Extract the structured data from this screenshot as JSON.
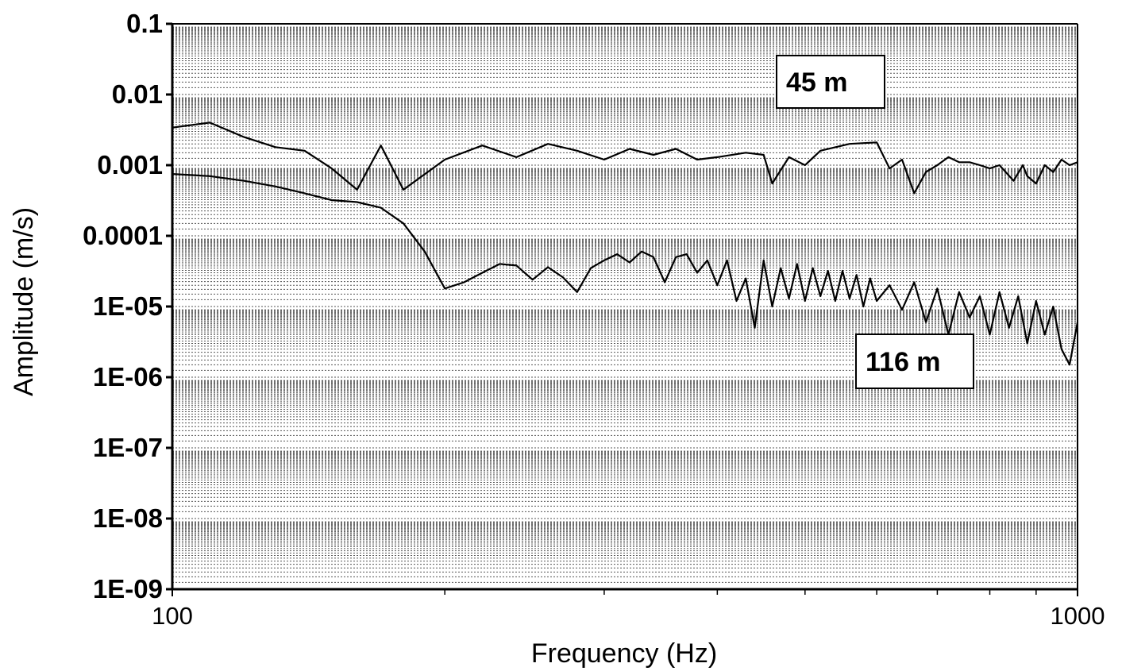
{
  "chart_data": {
    "type": "line",
    "xscale": "log",
    "yscale": "log",
    "xlabel": "Frequency (Hz)",
    "ylabel": "Amplitude (m/s)",
    "xlim": [
      100,
      1000
    ],
    "ylim": [
      1e-09,
      0.1
    ],
    "x_ticks": [
      {
        "value": 100,
        "label": "100"
      },
      {
        "value": 1000,
        "label": "1000"
      }
    ],
    "x_minor_ticks": [
      200,
      300,
      400,
      500,
      600,
      700,
      800,
      900
    ],
    "y_ticks": [
      {
        "value": 0.1,
        "label": "0.1"
      },
      {
        "value": 0.01,
        "label": "0.01"
      },
      {
        "value": 0.001,
        "label": "0.001"
      },
      {
        "value": 0.0001,
        "label": "0.0001"
      },
      {
        "value": 1e-05,
        "label": "1E-05"
      },
      {
        "value": 1e-06,
        "label": "1E-06"
      },
      {
        "value": 1e-07,
        "label": "1E-07"
      },
      {
        "value": 1e-08,
        "label": "1E-08"
      },
      {
        "value": 1e-09,
        "label": "1E-09"
      }
    ],
    "grid": true,
    "series": [
      {
        "name": "45  m",
        "x": [
          100,
          110,
          120,
          130,
          140,
          150,
          160,
          170,
          180,
          200,
          220,
          240,
          260,
          280,
          300,
          320,
          340,
          360,
          380,
          400,
          430,
          450,
          460,
          480,
          500,
          520,
          560,
          600,
          620,
          640,
          660,
          680,
          700,
          720,
          740,
          760,
          780,
          800,
          820,
          850,
          870,
          880,
          900,
          920,
          940,
          960,
          980,
          1000
        ],
        "y": [
          0.0034,
          0.004,
          0.0025,
          0.0018,
          0.0016,
          0.0009,
          0.00045,
          0.0019,
          0.00045,
          0.0012,
          0.0019,
          0.0013,
          0.002,
          0.0016,
          0.0012,
          0.0017,
          0.0014,
          0.0017,
          0.0012,
          0.0013,
          0.0015,
          0.0014,
          0.00055,
          0.0013,
          0.001,
          0.0016,
          0.002,
          0.0021,
          0.0009,
          0.0012,
          0.0004,
          0.0008,
          0.001,
          0.0013,
          0.0011,
          0.0011,
          0.001,
          0.0009,
          0.001,
          0.0006,
          0.001,
          0.0007,
          0.00055,
          0.001,
          0.0008,
          0.0012,
          0.001,
          0.0011
        ]
      },
      {
        "name": "116 m",
        "x": [
          100,
          110,
          120,
          130,
          140,
          150,
          160,
          170,
          180,
          190,
          200,
          210,
          220,
          230,
          240,
          250,
          260,
          270,
          280,
          290,
          300,
          310,
          320,
          330,
          340,
          350,
          360,
          370,
          380,
          390,
          400,
          410,
          420,
          430,
          440,
          450,
          460,
          470,
          480,
          490,
          500,
          510,
          520,
          530,
          540,
          550,
          560,
          570,
          580,
          590,
          600,
          620,
          640,
          660,
          680,
          700,
          720,
          740,
          760,
          780,
          800,
          820,
          840,
          860,
          880,
          900,
          920,
          940,
          960,
          980,
          1000
        ],
        "y": [
          0.00075,
          0.0007,
          0.0006,
          0.0005,
          0.0004,
          0.00032,
          0.0003,
          0.00025,
          0.00015,
          6e-05,
          1.8e-05,
          2.2e-05,
          3e-05,
          4e-05,
          3.8e-05,
          2.4e-05,
          3.6e-05,
          2.6e-05,
          1.6e-05,
          3.5e-05,
          4.5e-05,
          5.5e-05,
          4.2e-05,
          6e-05,
          5e-05,
          2.2e-05,
          5e-05,
          5.5e-05,
          3e-05,
          4.5e-05,
          2e-05,
          4.5e-05,
          1.2e-05,
          2.5e-05,
          5e-06,
          4.5e-05,
          1e-05,
          3.5e-05,
          1.3e-05,
          4e-05,
          1.2e-05,
          3.5e-05,
          1.4e-05,
          3.2e-05,
          1.2e-05,
          3.2e-05,
          1.3e-05,
          2.8e-05,
          1e-05,
          2.5e-05,
          1.2e-05,
          2e-05,
          9e-06,
          2.2e-05,
          6e-06,
          1.8e-05,
          4e-06,
          1.6e-05,
          7e-06,
          1.4e-05,
          4e-06,
          1.6e-05,
          5e-06,
          1.4e-05,
          3e-06,
          1.2e-05,
          4e-06,
          1e-05,
          2.5e-06,
          1.5e-06,
          6e-06
        ]
      }
    ],
    "annotations": [
      {
        "text": "45  m",
        "series": 0
      },
      {
        "text": "116 m",
        "series": 1
      }
    ]
  }
}
